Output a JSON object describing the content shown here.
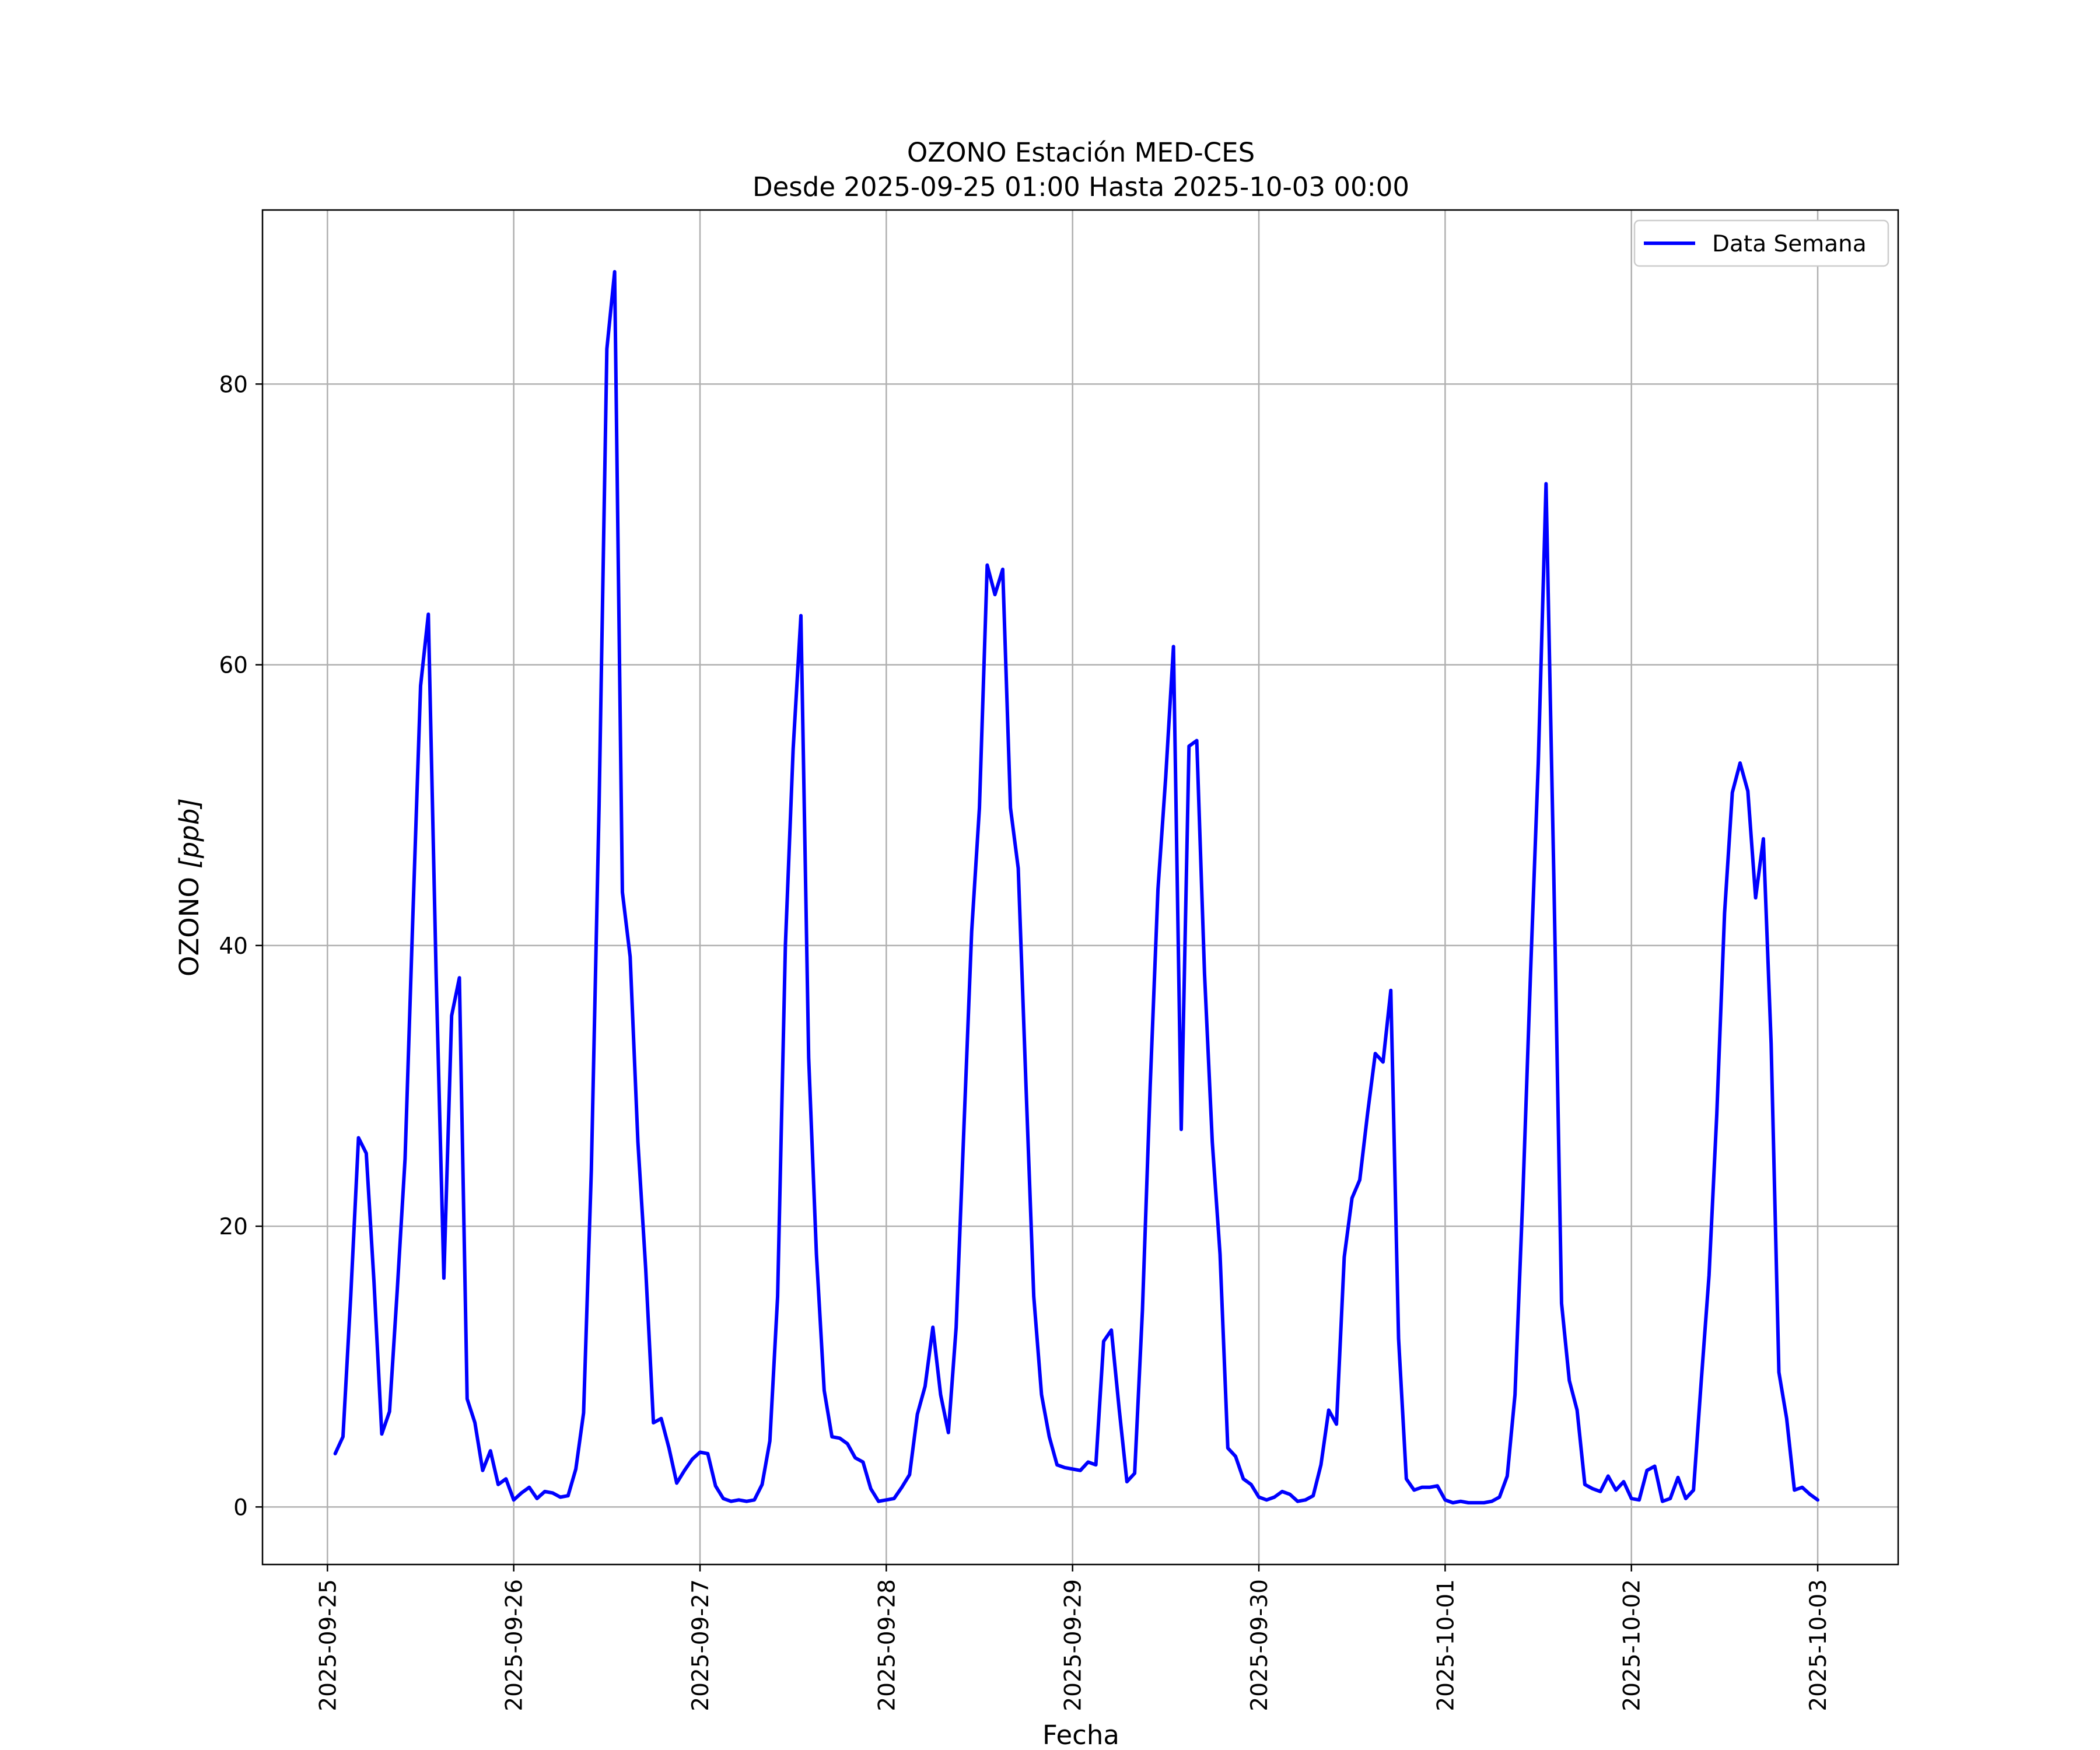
{
  "chart_data": {
    "type": "line",
    "title": "OZONO Estación MED-CES",
    "subtitle": "Desde 2025-09-25 01:00 Hasta 2025-10-03 00:00",
    "xlabel": "Fecha",
    "ylabel_text": "OZONO ",
    "ylabel_unit": "[ppb]",
    "xlim": [
      "2025-09-24 15:38",
      "2025-10-03 10:22"
    ],
    "ylim": [
      -4.1,
      92.4
    ],
    "grid": true,
    "legend_position": "top-right",
    "x_ticks": [
      "2025-09-25",
      "2025-09-26",
      "2025-09-27",
      "2025-09-28",
      "2025-09-29",
      "2025-09-30",
      "2025-10-01",
      "2025-10-02",
      "2025-10-03"
    ],
    "y_ticks": [
      0,
      20,
      40,
      60,
      80
    ],
    "series": [
      {
        "name": "Data Semana",
        "color": "#0000ff",
        "x_start": "2025-09-25 01:00",
        "x_step_hours": 1,
        "values": [
          3.8,
          5.0,
          15.0,
          26.3,
          25.2,
          16.0,
          5.2,
          6.8,
          15.5,
          24.8,
          42.0,
          58.5,
          63.6,
          38.0,
          16.3,
          35.0,
          37.7,
          7.7,
          6.0,
          2.6,
          4.0,
          1.6,
          2.0,
          0.5,
          1.0,
          1.4,
          0.6,
          1.1,
          1.0,
          0.7,
          0.8,
          2.7,
          6.7,
          24.0,
          50.0,
          82.5,
          88.0,
          43.8,
          39.2,
          26.0,
          17.0,
          6.0,
          6.3,
          4.2,
          1.7,
          2.6,
          3.4,
          3.9,
          3.8,
          1.5,
          0.6,
          0.4,
          0.5,
          0.4,
          0.5,
          1.6,
          4.7,
          15.0,
          40.0,
          54.0,
          63.5,
          32.0,
          18.0,
          8.3,
          5.0,
          4.9,
          4.5,
          3.5,
          3.2,
          1.3,
          0.4,
          0.5,
          0.6,
          1.4,
          2.3,
          6.6,
          8.6,
          12.8,
          8.0,
          5.3,
          12.8,
          27.0,
          41.0,
          49.8,
          67.1,
          65.0,
          66.8,
          49.8,
          45.5,
          30.0,
          15.0,
          8.0,
          5.0,
          3.0,
          2.8,
          2.7,
          2.6,
          3.2,
          3.0,
          11.8,
          12.6,
          7.0,
          1.8,
          2.4,
          14.0,
          30.0,
          44.0,
          52.0,
          61.3,
          26.9,
          54.2,
          54.6,
          38.0,
          26.0,
          18.0,
          4.2,
          3.6,
          2.0,
          1.6,
          0.7,
          0.5,
          0.7,
          1.1,
          0.9,
          0.4,
          0.5,
          0.8,
          3.0,
          6.9,
          5.9,
          17.8,
          22.0,
          23.3,
          28.0,
          32.3,
          31.7,
          36.8,
          12.0,
          2.0,
          1.2,
          1.4,
          1.4,
          1.5,
          0.5,
          0.3,
          0.4,
          0.3,
          0.3,
          0.3,
          0.4,
          0.7,
          2.2,
          8.0,
          22.0,
          38.0,
          53.0,
          72.9,
          45.0,
          14.5,
          9.0,
          6.9,
          1.6,
          1.3,
          1.1,
          2.2,
          1.2,
          1.8,
          0.6,
          0.5,
          2.6,
          2.9,
          0.4,
          0.6,
          2.1,
          0.6,
          1.2,
          9.0,
          16.5,
          28.0,
          42.3,
          50.9,
          53.0,
          51.0,
          43.4,
          47.6,
          33.0,
          9.6,
          6.3,
          1.2,
          1.4,
          0.9,
          0.5
        ]
      }
    ]
  }
}
